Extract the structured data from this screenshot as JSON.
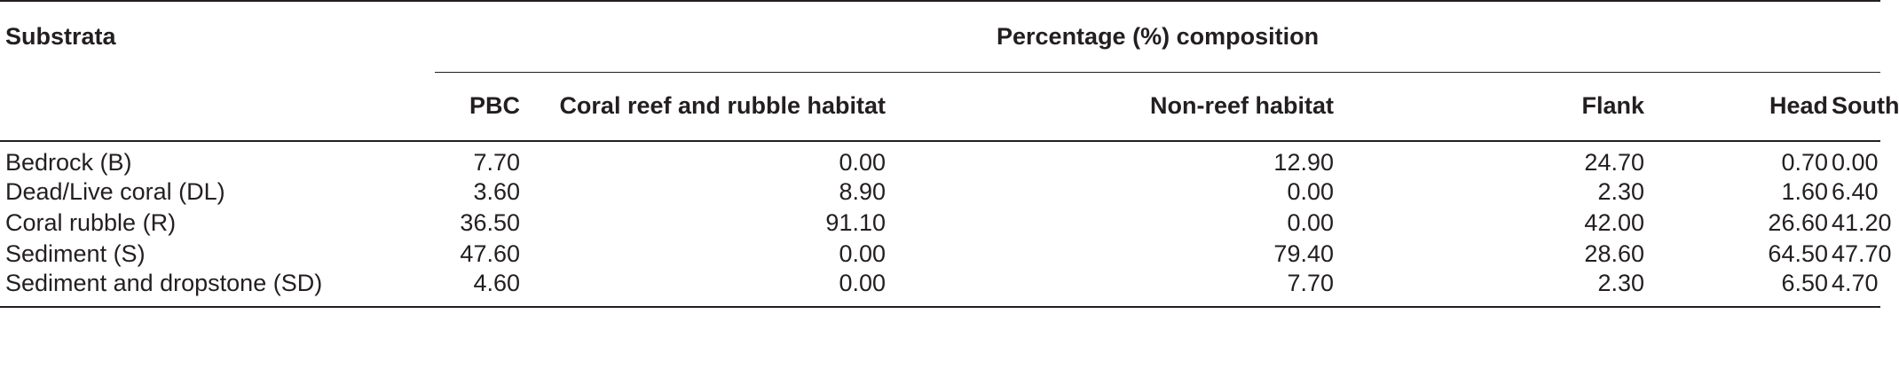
{
  "table": {
    "header": {
      "row_label": "Substrata",
      "group_label": "Percentage (%) composition",
      "columns": [
        "PBC",
        "Coral reef and rubble habitat",
        "Non-reef habitat",
        "Flank",
        "Head",
        "South"
      ]
    },
    "rows": [
      {
        "label": "Bedrock (B)",
        "values": [
          "7.70",
          "0.00",
          "12.90",
          "24.70",
          "0.70",
          "0.00"
        ]
      },
      {
        "label": "Dead/Live coral (DL)",
        "values": [
          "3.60",
          "8.90",
          "0.00",
          "2.30",
          "1.60",
          "6.40"
        ]
      },
      {
        "label": "Coral rubble (R)",
        "values": [
          "36.50",
          "91.10",
          "0.00",
          "42.00",
          "26.60",
          "41.20"
        ]
      },
      {
        "label": "Sediment (S)",
        "values": [
          "47.60",
          "0.00",
          "79.40",
          "28.60",
          "64.50",
          "47.70"
        ]
      },
      {
        "label": "Sediment and dropstone (SD)",
        "values": [
          "4.60",
          "0.00",
          "7.70",
          "2.30",
          "6.50",
          "4.70"
        ]
      }
    ]
  }
}
